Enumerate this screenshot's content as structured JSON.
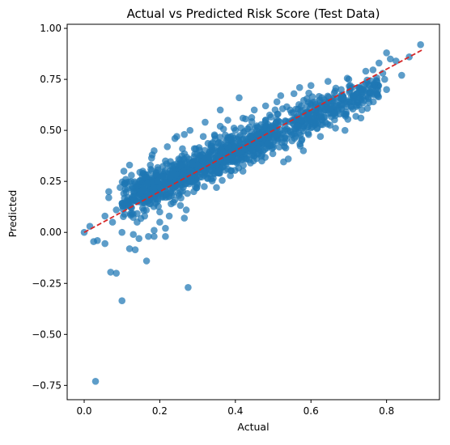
{
  "chart_data": {
    "type": "scatter",
    "title": "Actual vs Predicted Risk Score (Test Data)",
    "xlabel": "Actual",
    "ylabel": "Predicted",
    "xlim": [
      -0.045,
      0.94
    ],
    "ylim": [
      -0.82,
      1.02
    ],
    "xticks": [
      0.0,
      0.2,
      0.4,
      0.6,
      0.8
    ],
    "xtick_labels": [
      "0.0",
      "0.2",
      "0.4",
      "0.6",
      "0.8"
    ],
    "yticks": [
      -0.75,
      -0.5,
      -0.25,
      0.0,
      0.25,
      0.5,
      0.75,
      1.0
    ],
    "ytick_labels": [
      "−0.75",
      "−0.50",
      "−0.25",
      "0.00",
      "0.25",
      "0.50",
      "0.75",
      "1.00"
    ],
    "grid": false,
    "colors": {
      "points": "#1f77b4",
      "reference_line": "#d62728"
    },
    "reference_line": {
      "style": "dashed",
      "from": [
        0.0,
        0.0
      ],
      "to": [
        0.895,
        0.895
      ]
    },
    "points": [
      {
        "x": 0.03,
        "y": -0.73
      },
      {
        "x": 0.1,
        "y": -0.335
      },
      {
        "x": 0.275,
        "y": -0.27
      },
      {
        "x": 0.07,
        "y": -0.195
      },
      {
        "x": 0.085,
        "y": -0.2
      },
      {
        "x": 0.165,
        "y": -0.14
      },
      {
        "x": 0.12,
        "y": -0.08
      },
      {
        "x": 0.135,
        "y": -0.085
      },
      {
        "x": 0.055,
        "y": -0.055
      },
      {
        "x": 0.025,
        "y": -0.045
      },
      {
        "x": 0.0,
        "y": 0.0
      },
      {
        "x": 0.035,
        "y": -0.04
      },
      {
        "x": 0.1,
        "y": 0.0
      },
      {
        "x": 0.015,
        "y": 0.03
      },
      {
        "x": 0.055,
        "y": 0.08
      },
      {
        "x": 0.075,
        "y": 0.05
      },
      {
        "x": 0.085,
        "y": 0.11
      },
      {
        "x": 0.13,
        "y": -0.01
      },
      {
        "x": 0.145,
        "y": -0.03
      },
      {
        "x": 0.17,
        "y": -0.02
      },
      {
        "x": 0.185,
        "y": -0.02
      },
      {
        "x": 0.185,
        "y": 0.01
      },
      {
        "x": 0.215,
        "y": -0.02
      },
      {
        "x": 0.215,
        "y": 0.02
      },
      {
        "x": 0.265,
        "y": 0.07
      },
      {
        "x": 0.225,
        "y": 0.08
      },
      {
        "x": 0.24,
        "y": 0.16
      },
      {
        "x": 0.29,
        "y": 0.2
      },
      {
        "x": 0.065,
        "y": 0.2
      },
      {
        "x": 0.065,
        "y": 0.17
      },
      {
        "x": 0.095,
        "y": 0.22
      },
      {
        "x": 0.105,
        "y": 0.3
      },
      {
        "x": 0.11,
        "y": 0.26
      },
      {
        "x": 0.13,
        "y": 0.2
      },
      {
        "x": 0.125,
        "y": 0.28
      },
      {
        "x": 0.14,
        "y": 0.15
      },
      {
        "x": 0.16,
        "y": 0.27
      },
      {
        "x": 0.175,
        "y": 0.33
      },
      {
        "x": 0.18,
        "y": 0.38
      },
      {
        "x": 0.2,
        "y": 0.22
      },
      {
        "x": 0.215,
        "y": 0.35
      },
      {
        "x": 0.235,
        "y": 0.3
      },
      {
        "x": 0.245,
        "y": 0.47
      },
      {
        "x": 0.26,
        "y": 0.41
      },
      {
        "x": 0.265,
        "y": 0.48
      },
      {
        "x": 0.28,
        "y": 0.3
      },
      {
        "x": 0.295,
        "y": 0.41
      },
      {
        "x": 0.305,
        "y": 0.27
      },
      {
        "x": 0.315,
        "y": 0.47
      },
      {
        "x": 0.33,
        "y": 0.38
      },
      {
        "x": 0.35,
        "y": 0.33
      },
      {
        "x": 0.36,
        "y": 0.52
      },
      {
        "x": 0.375,
        "y": 0.45
      },
      {
        "x": 0.38,
        "y": 0.31
      },
      {
        "x": 0.4,
        "y": 0.5
      },
      {
        "x": 0.41,
        "y": 0.39
      },
      {
        "x": 0.42,
        "y": 0.56
      },
      {
        "x": 0.43,
        "y": 0.43
      },
      {
        "x": 0.44,
        "y": 0.34
      },
      {
        "x": 0.45,
        "y": 0.6
      },
      {
        "x": 0.46,
        "y": 0.48
      },
      {
        "x": 0.47,
        "y": 0.38
      },
      {
        "x": 0.48,
        "y": 0.55
      },
      {
        "x": 0.5,
        "y": 0.43
      },
      {
        "x": 0.51,
        "y": 0.64
      },
      {
        "x": 0.52,
        "y": 0.5
      },
      {
        "x": 0.53,
        "y": 0.42
      },
      {
        "x": 0.545,
        "y": 0.6
      },
      {
        "x": 0.555,
        "y": 0.68
      },
      {
        "x": 0.565,
        "y": 0.52
      },
      {
        "x": 0.575,
        "y": 0.45
      },
      {
        "x": 0.59,
        "y": 0.62
      },
      {
        "x": 0.6,
        "y": 0.72
      },
      {
        "x": 0.61,
        "y": 0.55
      },
      {
        "x": 0.625,
        "y": 0.47
      },
      {
        "x": 0.635,
        "y": 0.65
      },
      {
        "x": 0.645,
        "y": 0.74
      },
      {
        "x": 0.66,
        "y": 0.58
      },
      {
        "x": 0.68,
        "y": 0.7
      },
      {
        "x": 0.69,
        "y": 0.5
      },
      {
        "x": 0.7,
        "y": 0.75
      },
      {
        "x": 0.72,
        "y": 0.68
      },
      {
        "x": 0.735,
        "y": 0.6
      },
      {
        "x": 0.745,
        "y": 0.79
      },
      {
        "x": 0.755,
        "y": 0.72
      },
      {
        "x": 0.765,
        "y": 0.64
      },
      {
        "x": 0.775,
        "y": 0.74
      },
      {
        "x": 0.78,
        "y": 0.83
      },
      {
        "x": 0.79,
        "y": 0.78
      },
      {
        "x": 0.8,
        "y": 0.88
      },
      {
        "x": 0.81,
        "y": 0.85
      },
      {
        "x": 0.825,
        "y": 0.84
      },
      {
        "x": 0.84,
        "y": 0.77
      },
      {
        "x": 0.86,
        "y": 0.86
      },
      {
        "x": 0.89,
        "y": 0.92
      },
      {
        "x": 0.795,
        "y": 0.75
      },
      {
        "x": 0.8,
        "y": 0.7
      },
      {
        "x": 0.73,
        "y": 0.66
      },
      {
        "x": 0.41,
        "y": 0.66
      },
      {
        "x": 0.57,
        "y": 0.71
      },
      {
        "x": 0.47,
        "y": 0.35
      },
      {
        "x": 0.54,
        "y": 0.36
      },
      {
        "x": 0.58,
        "y": 0.4
      },
      {
        "x": 0.32,
        "y": 0.54
      },
      {
        "x": 0.24,
        "y": 0.46
      },
      {
        "x": 0.36,
        "y": 0.6
      },
      {
        "x": 0.35,
        "y": 0.22
      },
      {
        "x": 0.42,
        "y": 0.3
      },
      {
        "x": 0.14,
        "y": 0.05
      },
      {
        "x": 0.16,
        "y": 0.08
      },
      {
        "x": 0.2,
        "y": 0.1
      },
      {
        "x": 0.2,
        "y": 0.05
      },
      {
        "x": 0.175,
        "y": 0.14
      },
      {
        "x": 0.23,
        "y": 0.14
      },
      {
        "x": 0.27,
        "y": 0.11
      },
      {
        "x": 0.15,
        "y": 0.16
      },
      {
        "x": 0.155,
        "y": 0.3
      },
      {
        "x": 0.12,
        "y": 0.33
      },
      {
        "x": 0.185,
        "y": 0.4
      },
      {
        "x": 0.22,
        "y": 0.42
      },
      {
        "x": 0.25,
        "y": 0.36
      },
      {
        "x": 0.3,
        "y": 0.33
      },
      {
        "x": 0.34,
        "y": 0.44
      },
      {
        "x": 0.39,
        "y": 0.4
      },
      {
        "x": 0.44,
        "y": 0.47
      },
      {
        "x": 0.49,
        "y": 0.5
      },
      {
        "x": 0.55,
        "y": 0.55
      },
      {
        "x": 0.62,
        "y": 0.62
      },
      {
        "x": 0.66,
        "y": 0.66
      },
      {
        "x": 0.71,
        "y": 0.71
      },
      {
        "x": 0.48,
        "y": 0.62
      },
      {
        "x": 0.38,
        "y": 0.55
      },
      {
        "x": 0.28,
        "y": 0.5
      },
      {
        "x": 0.52,
        "y": 0.67
      },
      {
        "x": 0.6,
        "y": 0.58
      }
    ]
  }
}
